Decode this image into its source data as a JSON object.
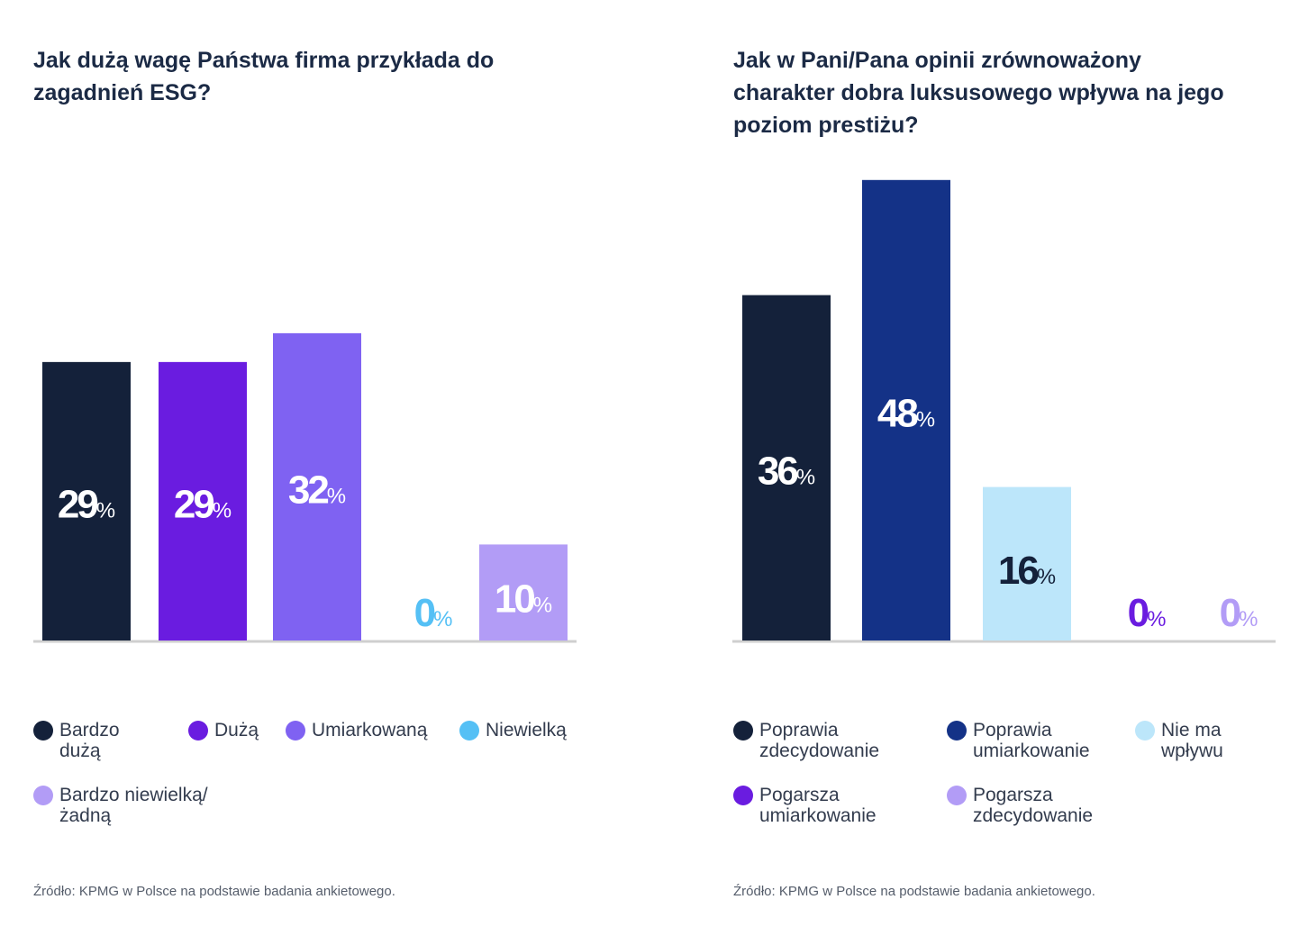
{
  "chart_data": [
    {
      "type": "bar",
      "title": "Jak dużą wagę Państwa firma przykłada do zagadnień ESG?",
      "xlabel": "",
      "ylabel": "",
      "unit": "%",
      "ylim": [
        0,
        50
      ],
      "grid": false,
      "categories": [
        "Bardzo dużą",
        "Dużą",
        "Umiarkowaną",
        "Niewielką",
        "Bardzo niewielką/ żadną"
      ],
      "values": [
        29,
        29,
        32,
        0,
        10
      ],
      "data_labels": [
        "29%",
        "29%",
        "32%",
        "0%",
        "10%"
      ],
      "colors": [
        "#14213a",
        "#6a1ce0",
        "#7f62f2",
        "#55c0f5",
        "#b29cf6"
      ],
      "label_colors": [
        "#ffffff",
        "#ffffff",
        "#ffffff",
        "#55c0f5",
        "#ffffff"
      ],
      "legend": {
        "placement": "bottom",
        "items": [
          {
            "label": "Bardzo dużą",
            "color": "#14213a"
          },
          {
            "label": "Dużą",
            "color": "#6a1ce0"
          },
          {
            "label": "Umiarkowaną",
            "color": "#7f62f2"
          },
          {
            "label": "Niewielką",
            "color": "#55c0f5"
          },
          {
            "label": "Bardzo niewielką/ żadną",
            "color": "#b29cf6"
          }
        ]
      },
      "source": "Źródło: KPMG w Polsce na podstawie badania ankietowego."
    },
    {
      "type": "bar",
      "title": "Jak w Pani/Pana opinii zrównoważony charakter dobra luksusowego wpływa na jego poziom prestiżu?",
      "xlabel": "",
      "ylabel": "",
      "unit": "%",
      "ylim": [
        0,
        50
      ],
      "grid": false,
      "categories": [
        "Poprawia zdecydowanie",
        "Poprawia umiarkowanie",
        "Nie ma wpływu",
        "Pogarsza umiarkowanie",
        "Pogarsza zdecydowanie"
      ],
      "values": [
        36,
        48,
        16,
        0,
        0
      ],
      "data_labels": [
        "36%",
        "48%",
        "16%",
        "0%",
        "0%"
      ],
      "colors": [
        "#14213a",
        "#143287",
        "#bce6fa",
        "#6a1ce0",
        "#b29cf6"
      ],
      "label_colors": [
        "#ffffff",
        "#ffffff",
        "#14213a",
        "#6a1ce0",
        "#b29cf6"
      ],
      "legend": {
        "placement": "bottom",
        "items": [
          {
            "label": "Poprawia zdecydowanie",
            "color": "#14213a"
          },
          {
            "label": "Poprawia umiarkowanie",
            "color": "#143287"
          },
          {
            "label": "Nie ma wpływu",
            "color": "#bce6fa"
          },
          {
            "label": "Pogarsza umiarkowanie",
            "color": "#6a1ce0"
          },
          {
            "label": "Pogarsza zdecydowanie",
            "color": "#b29cf6"
          }
        ]
      },
      "source": "Źródło: KPMG w Polsce na podstawie badania ankietowego."
    }
  ]
}
